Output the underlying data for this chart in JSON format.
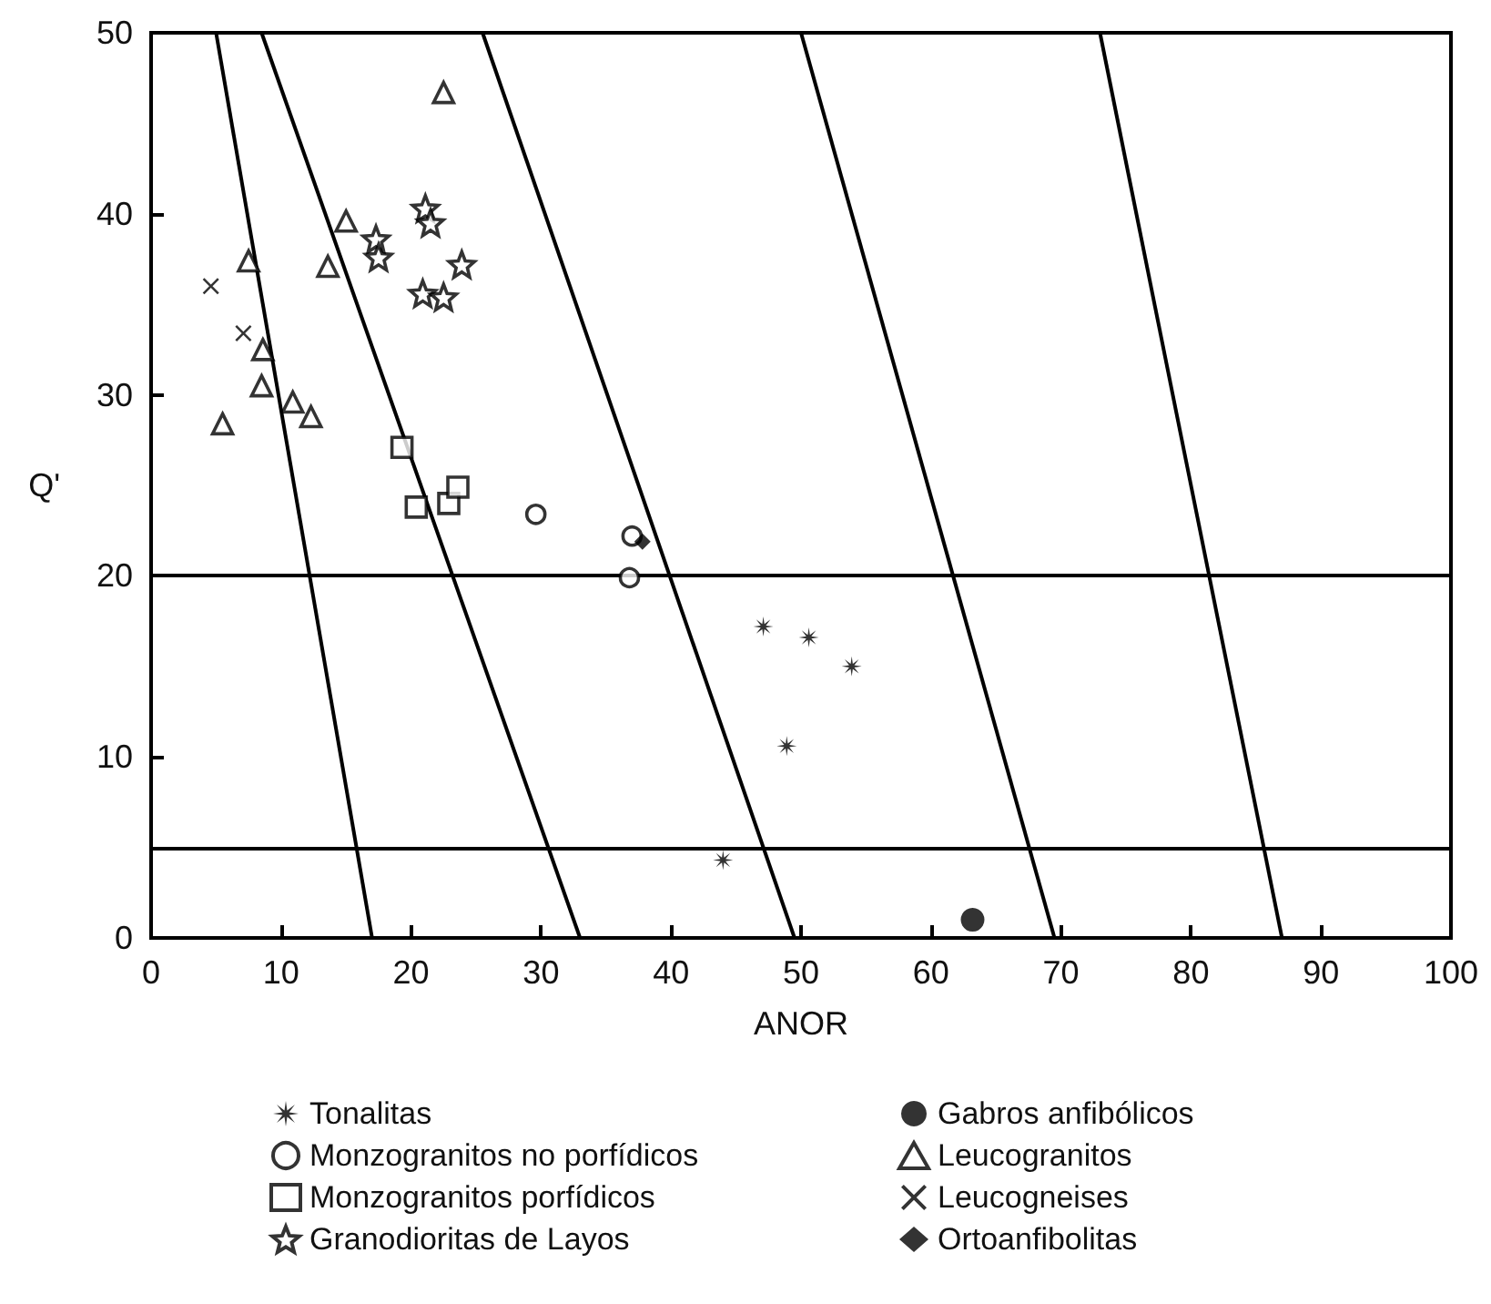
{
  "chart_data": {
    "type": "scatter",
    "xlabel": "ANOR",
    "ylabel": "Q'",
    "xlim": [
      0,
      100
    ],
    "ylim": [
      0,
      50
    ],
    "xticks": [
      0,
      10,
      20,
      30,
      40,
      50,
      60,
      70,
      80,
      90,
      100
    ],
    "yticks": [
      0,
      10,
      20,
      30,
      40,
      50
    ],
    "grid": false,
    "legend": "bottom",
    "ref_lines": [
      {
        "axis": "y",
        "value": 20,
        "color": "#000000"
      },
      {
        "axis": "y",
        "value": 5,
        "color": "#000000"
      }
    ],
    "series": [
      {
        "name": "Tonalitas",
        "marker": "asterisk",
        "color": "#000000",
        "x": [
          47.1,
          50.6,
          53.9,
          48.9,
          44.0
        ],
        "values": [
          17.2,
          16.6,
          15.0,
          10.6,
          4.3
        ]
      },
      {
        "name": "Monzogranitos no porfídicos",
        "marker": "circle-open",
        "color": "#000000",
        "x": [
          29.6,
          37.0,
          36.8
        ],
        "values": [
          23.4,
          22.2,
          19.9
        ]
      },
      {
        "name": "Monzogranitos porfídicos",
        "marker": "square-open",
        "color": "#000000",
        "x": [
          19.3,
          20.4,
          22.9,
          23.6
        ],
        "values": [
          27.1,
          23.8,
          24.0,
          24.9
        ]
      },
      {
        "name": "Granodioritas de Layos",
        "marker": "star-open",
        "color": "#000000",
        "x": [
          21.1,
          21.5,
          17.3,
          17.5,
          23.9,
          20.9,
          22.5
        ],
        "values": [
          40.3,
          39.5,
          38.6,
          37.6,
          37.2,
          35.6,
          35.4
        ]
      },
      {
        "name": "Gabros anfibólicos",
        "marker": "circle",
        "color": "#000000",
        "x": [
          63.2
        ],
        "values": [
          1.0
        ]
      },
      {
        "name": "Leucogranitos",
        "marker": "triangle-open",
        "color": "#000000",
        "x": [
          22.5,
          15.0,
          7.5,
          13.6,
          8.6,
          8.5,
          10.9,
          12.3,
          5.5
        ],
        "values": [
          46.7,
          39.6,
          37.4,
          37.1,
          32.5,
          30.5,
          29.6,
          28.8,
          28.4
        ]
      },
      {
        "name": "Leucogneises",
        "marker": "cross",
        "color": "#000000",
        "x": [
          4.6,
          7.1
        ],
        "values": [
          36.0,
          33.4
        ]
      },
      {
        "name": "Ortoanfibolitas",
        "marker": "diamond",
        "color": "#000000",
        "x": [
          37.8
        ],
        "values": [
          21.9
        ]
      },
      {
        "type": "line",
        "marker": "none",
        "color": "#000000",
        "x": [
          5,
          17
        ],
        "values": [
          50,
          0
        ]
      },
      {
        "type": "line",
        "marker": "none",
        "color": "#000000",
        "x": [
          8.5,
          33
        ],
        "values": [
          50,
          0
        ]
      },
      {
        "type": "line",
        "marker": "none",
        "color": "#000000",
        "x": [
          25.5,
          49.5
        ],
        "values": [
          50,
          0
        ]
      },
      {
        "type": "line",
        "marker": "none",
        "color": "#000000",
        "x": [
          50,
          69.5
        ],
        "values": [
          50,
          0
        ]
      },
      {
        "type": "line",
        "marker": "none",
        "color": "#000000",
        "x": [
          73,
          87
        ],
        "values": [
          50,
          0
        ]
      }
    ]
  }
}
